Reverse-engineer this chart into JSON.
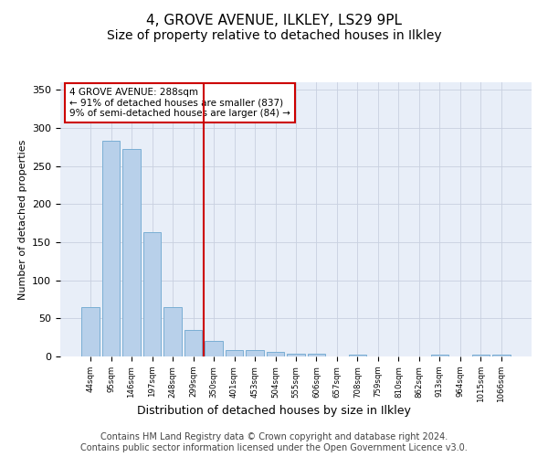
{
  "title": "4, GROVE AVENUE, ILKLEY, LS29 9PL",
  "subtitle": "Size of property relative to detached houses in Ilkley",
  "xlabel": "Distribution of detached houses by size in Ilkley",
  "ylabel": "Number of detached properties",
  "footer": "Contains HM Land Registry data © Crown copyright and database right 2024.\nContains public sector information licensed under the Open Government Licence v3.0.",
  "bar_labels": [
    "44sqm",
    "95sqm",
    "146sqm",
    "197sqm",
    "248sqm",
    "299sqm",
    "350sqm",
    "401sqm",
    "453sqm",
    "504sqm",
    "555sqm",
    "606sqm",
    "657sqm",
    "708sqm",
    "759sqm",
    "810sqm",
    "862sqm",
    "913sqm",
    "964sqm",
    "1015sqm",
    "1066sqm"
  ],
  "bar_values": [
    65,
    283,
    272,
    163,
    65,
    35,
    20,
    8,
    9,
    6,
    4,
    4,
    0,
    3,
    0,
    0,
    0,
    2,
    0,
    2,
    2
  ],
  "bar_color": "#b8d0ea",
  "bar_edge_color": "#7aaed4",
  "vline_x": 5.5,
  "vline_color": "#cc0000",
  "annotation_text": "4 GROVE AVENUE: 288sqm\n← 91% of detached houses are smaller (837)\n9% of semi-detached houses are larger (84) →",
  "annotation_box_color": "#cc0000",
  "annotation_box_fill": "#ffffff",
  "ylim": [
    0,
    360
  ],
  "yticks": [
    0,
    50,
    100,
    150,
    200,
    250,
    300,
    350
  ],
  "bg_color": "#e8eef8",
  "title_fontsize": 11,
  "subtitle_fontsize": 10,
  "footer_fontsize": 7,
  "ylabel_fontsize": 8,
  "xlabel_fontsize": 9
}
